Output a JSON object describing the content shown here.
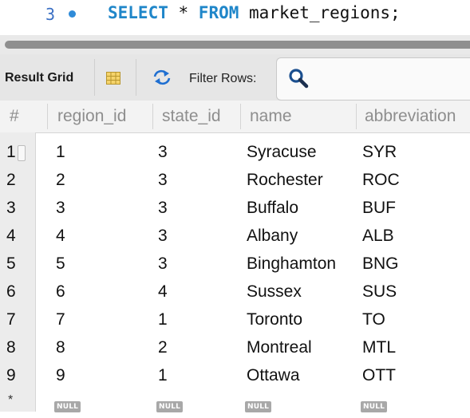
{
  "editor": {
    "line_number": "3",
    "sql": {
      "kw1": "SELECT",
      "star": " * ",
      "kw2": "FROM",
      "rest": " market_regions;"
    }
  },
  "toolbar": {
    "result_grid_label": "Result Grid",
    "filter_rows_label": "Filter Rows:",
    "filter_value": ""
  },
  "grid": {
    "columns": [
      "#",
      "region_id",
      "state_id",
      "name",
      "abbreviation"
    ],
    "rows": [
      {
        "num": "1",
        "region_id": "1",
        "state_id": "3",
        "name": "Syracuse",
        "abbreviation": "SYR"
      },
      {
        "num": "2",
        "region_id": "2",
        "state_id": "3",
        "name": "Rochester",
        "abbreviation": "ROC"
      },
      {
        "num": "3",
        "region_id": "3",
        "state_id": "3",
        "name": "Buffalo",
        "abbreviation": "BUF"
      },
      {
        "num": "4",
        "region_id": "4",
        "state_id": "3",
        "name": "Albany",
        "abbreviation": "ALB"
      },
      {
        "num": "5",
        "region_id": "5",
        "state_id": "3",
        "name": "Binghamton",
        "abbreviation": "BNG"
      },
      {
        "num": "6",
        "region_id": "6",
        "state_id": "4",
        "name": "Sussex",
        "abbreviation": "SUS"
      },
      {
        "num": "7",
        "region_id": "7",
        "state_id": "1",
        "name": "Toronto",
        "abbreviation": "TO"
      },
      {
        "num": "8",
        "region_id": "8",
        "state_id": "2",
        "name": "Montreal",
        "abbreviation": "MTL"
      },
      {
        "num": "9",
        "region_id": "9",
        "state_id": "1",
        "name": "Ottawa",
        "abbreviation": "OTT"
      }
    ],
    "new_row": {
      "marker": "*",
      "null_label": "NULL"
    }
  },
  "colors": {
    "keyword": "#1f86c9",
    "line_number": "#3a6fc4",
    "null_badge": "#a8a8a8",
    "header_text": "#8e8e8e"
  },
  "icons": {
    "grid_view": "grid-icon",
    "refresh": "refresh-icon",
    "search": "search-icon"
  }
}
